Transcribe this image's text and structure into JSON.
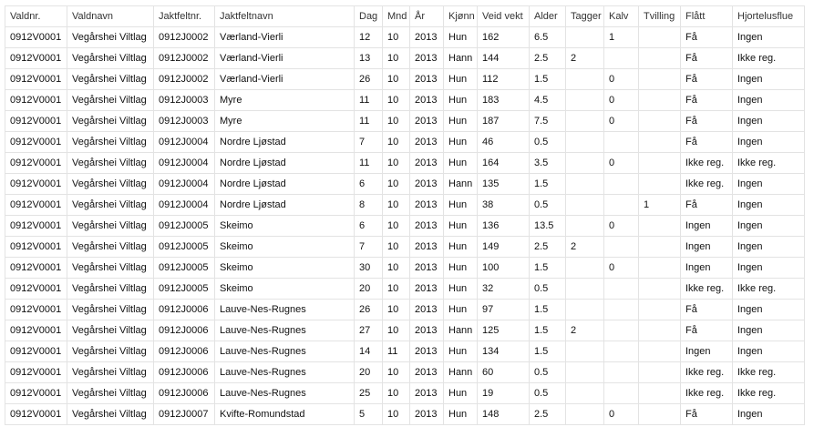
{
  "table": {
    "headers": [
      "Valdnr.",
      "Valdnavn",
      "Jaktfeltnr.",
      "Jaktfeltnavn",
      "Dag",
      "Mnd",
      "År",
      "Kjønn",
      "Veid vekt",
      "Alder",
      "Tagger",
      "Kalv",
      "Tvilling",
      "Flått",
      "Hjortelusflue"
    ],
    "rows": [
      [
        "0912V0001",
        "Vegårshei Viltlag",
        "0912J0002",
        "Værland-Vierli",
        "12",
        "10",
        "2013",
        "Hun",
        "162",
        "6.5",
        "",
        "1",
        "",
        "Få",
        "Ingen"
      ],
      [
        "0912V0001",
        "Vegårshei Viltlag",
        "0912J0002",
        "Værland-Vierli",
        "13",
        "10",
        "2013",
        "Hann",
        "144",
        "2.5",
        "2",
        "",
        "",
        "Få",
        "Ikke reg."
      ],
      [
        "0912V0001",
        "Vegårshei Viltlag",
        "0912J0002",
        "Værland-Vierli",
        "26",
        "10",
        "2013",
        "Hun",
        "112",
        "1.5",
        "",
        "0",
        "",
        "Få",
        "Ingen"
      ],
      [
        "0912V0001",
        "Vegårshei Viltlag",
        "0912J0003",
        "Myre",
        "11",
        "10",
        "2013",
        "Hun",
        "183",
        "4.5",
        "",
        "0",
        "",
        "Få",
        "Ingen"
      ],
      [
        "0912V0001",
        "Vegårshei Viltlag",
        "0912J0003",
        "Myre",
        "11",
        "10",
        "2013",
        "Hun",
        "187",
        "7.5",
        "",
        "0",
        "",
        "Få",
        "Ingen"
      ],
      [
        "0912V0001",
        "Vegårshei Viltlag",
        "0912J0004",
        "Nordre Ljøstad",
        "7",
        "10",
        "2013",
        "Hun",
        "46",
        "0.5",
        "",
        "",
        "",
        "Få",
        "Ingen"
      ],
      [
        "0912V0001",
        "Vegårshei Viltlag",
        "0912J0004",
        "Nordre Ljøstad",
        "11",
        "10",
        "2013",
        "Hun",
        "164",
        "3.5",
        "",
        "0",
        "",
        "Ikke reg.",
        "Ikke reg."
      ],
      [
        "0912V0001",
        "Vegårshei Viltlag",
        "0912J0004",
        "Nordre Ljøstad",
        "6",
        "10",
        "2013",
        "Hann",
        "135",
        "1.5",
        "",
        "",
        "",
        "Ikke reg.",
        "Ingen"
      ],
      [
        "0912V0001",
        "Vegårshei Viltlag",
        "0912J0004",
        "Nordre Ljøstad",
        "8",
        "10",
        "2013",
        "Hun",
        "38",
        "0.5",
        "",
        "",
        "1",
        "Få",
        "Ingen"
      ],
      [
        "0912V0001",
        "Vegårshei Viltlag",
        "0912J0005",
        "Skeimo",
        "6",
        "10",
        "2013",
        "Hun",
        "136",
        "13.5",
        "",
        "0",
        "",
        "Ingen",
        "Ingen"
      ],
      [
        "0912V0001",
        "Vegårshei Viltlag",
        "0912J0005",
        "Skeimo",
        "7",
        "10",
        "2013",
        "Hun",
        "149",
        "2.5",
        "2",
        "",
        "",
        "Ingen",
        "Ingen"
      ],
      [
        "0912V0001",
        "Vegårshei Viltlag",
        "0912J0005",
        "Skeimo",
        "30",
        "10",
        "2013",
        "Hun",
        "100",
        "1.5",
        "",
        "0",
        "",
        "Ingen",
        "Ingen"
      ],
      [
        "0912V0001",
        "Vegårshei Viltlag",
        "0912J0005",
        "Skeimo",
        "20",
        "10",
        "2013",
        "Hun",
        "32",
        "0.5",
        "",
        "",
        "",
        "Ikke reg.",
        "Ikke reg."
      ],
      [
        "0912V0001",
        "Vegårshei Viltlag",
        "0912J0006",
        "Lauve-Nes-Rugnes",
        "26",
        "10",
        "2013",
        "Hun",
        "97",
        "1.5",
        "",
        "",
        "",
        "Få",
        "Ingen"
      ],
      [
        "0912V0001",
        "Vegårshei Viltlag",
        "0912J0006",
        "Lauve-Nes-Rugnes",
        "27",
        "10",
        "2013",
        "Hann",
        "125",
        "1.5",
        "2",
        "",
        "",
        "Få",
        "Ingen"
      ],
      [
        "0912V0001",
        "Vegårshei Viltlag",
        "0912J0006",
        "Lauve-Nes-Rugnes",
        "14",
        "11",
        "2013",
        "Hun",
        "134",
        "1.5",
        "",
        "",
        "",
        "Ingen",
        "Ingen"
      ],
      [
        "0912V0001",
        "Vegårshei Viltlag",
        "0912J0006",
        "Lauve-Nes-Rugnes",
        "20",
        "10",
        "2013",
        "Hann",
        "60",
        "0.5",
        "",
        "",
        "",
        "Ikke reg.",
        "Ikke reg."
      ],
      [
        "0912V0001",
        "Vegårshei Viltlag",
        "0912J0006",
        "Lauve-Nes-Rugnes",
        "25",
        "10",
        "2013",
        "Hun",
        "19",
        "0.5",
        "",
        "",
        "",
        "Ikke reg.",
        "Ikke reg."
      ],
      [
        "0912V0001",
        "Vegårshei Viltlag",
        "0912J0007",
        "Kvifte-Romundstad",
        "5",
        "10",
        "2013",
        "Hun",
        "148",
        "2.5",
        "",
        "0",
        "",
        "Få",
        "Ingen"
      ]
    ]
  }
}
